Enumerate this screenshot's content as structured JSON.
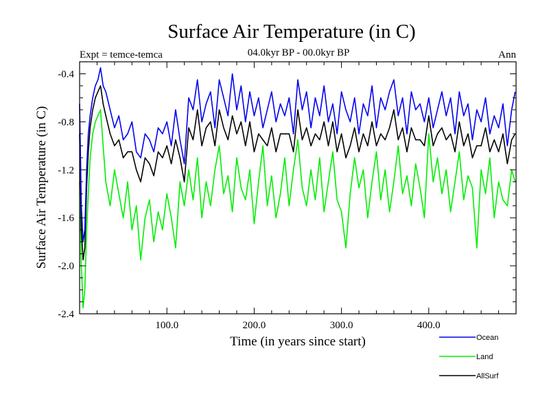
{
  "chart_data": {
    "type": "line",
    "title": "Surface Air Temperature (in C)",
    "subtitle": "04.0kyr BP - 00.0kyr BP",
    "left_note": "Expt = temce-temca",
    "right_note": "Ann",
    "xlabel": "Time (in years since start)",
    "ylabel": "Surface Air Temperature (in C)",
    "xlim": [
      0,
      500
    ],
    "ylim": [
      -2.4,
      -0.3
    ],
    "x_ticks": [
      100,
      200,
      300,
      400
    ],
    "x_tick_labels": [
      "100.0",
      "200.0",
      "300.0",
      "400.0"
    ],
    "y_ticks": [
      -2.4,
      -2.0,
      -1.6,
      -1.2,
      -0.8,
      -0.4
    ],
    "y_tick_labels": [
      "-2.4",
      "-2.0",
      "-1.6",
      "-1.2",
      "-0.8",
      "-0.4"
    ],
    "legend_position": "bottom-right",
    "series": [
      {
        "name": "Ocean",
        "color": "#0000ee",
        "x": [
          0,
          2,
          4,
          6,
          8,
          10,
          12,
          15,
          18,
          21,
          24,
          27,
          30,
          35,
          40,
          45,
          50,
          55,
          60,
          65,
          70,
          75,
          80,
          85,
          90,
          95,
          100,
          105,
          110,
          115,
          120,
          125,
          130,
          135,
          140,
          145,
          150,
          155,
          160,
          165,
          170,
          175,
          180,
          185,
          190,
          195,
          200,
          205,
          210,
          215,
          220,
          225,
          230,
          235,
          240,
          245,
          250,
          255,
          260,
          265,
          270,
          275,
          280,
          285,
          290,
          295,
          300,
          305,
          310,
          315,
          320,
          325,
          330,
          335,
          340,
          345,
          350,
          355,
          360,
          365,
          370,
          375,
          380,
          385,
          390,
          395,
          400,
          405,
          410,
          415,
          420,
          425,
          430,
          435,
          440,
          445,
          450,
          455,
          460,
          465,
          470,
          475,
          480,
          485,
          490,
          495,
          499
        ],
        "values": [
          -0.65,
          -1.5,
          -1.8,
          -1.7,
          -1.2,
          -0.9,
          -0.75,
          -0.6,
          -0.5,
          -0.45,
          -0.35,
          -0.5,
          -0.55,
          -0.7,
          -0.85,
          -0.75,
          -0.95,
          -0.9,
          -0.8,
          -1.05,
          -1.1,
          -0.9,
          -0.95,
          -1.05,
          -0.85,
          -0.9,
          -0.8,
          -1.0,
          -0.7,
          -0.95,
          -1.15,
          -0.6,
          -0.7,
          -0.45,
          -0.8,
          -0.65,
          -0.55,
          -0.85,
          -0.45,
          -0.6,
          -0.75,
          -0.4,
          -0.7,
          -0.5,
          -0.8,
          -0.55,
          -0.75,
          -0.6,
          -0.85,
          -0.7,
          -0.55,
          -0.8,
          -0.65,
          -0.75,
          -0.6,
          -0.9,
          -0.45,
          -0.7,
          -0.55,
          -0.85,
          -0.6,
          -0.75,
          -0.5,
          -0.8,
          -0.65,
          -0.9,
          -0.55,
          -0.7,
          -0.8,
          -0.6,
          -0.9,
          -0.65,
          -0.75,
          -0.5,
          -0.85,
          -0.6,
          -0.7,
          -0.55,
          -0.45,
          -0.75,
          -0.6,
          -0.9,
          -0.55,
          -0.7,
          -0.65,
          -0.8,
          -0.6,
          -0.85,
          -0.7,
          -0.55,
          -0.75,
          -0.6,
          -0.9,
          -0.55,
          -0.75,
          -0.65,
          -0.95,
          -0.7,
          -0.8,
          -0.6,
          -0.9,
          -0.75,
          -0.85,
          -0.65,
          -1.0,
          -0.7,
          -0.55
        ]
      },
      {
        "name": "Land",
        "color": "#00ee00",
        "x": [
          0,
          2,
          4,
          6,
          8,
          10,
          12,
          15,
          18,
          21,
          24,
          27,
          30,
          35,
          40,
          45,
          50,
          55,
          60,
          65,
          70,
          75,
          80,
          85,
          90,
          95,
          100,
          105,
          110,
          115,
          120,
          125,
          130,
          135,
          140,
          145,
          150,
          155,
          160,
          165,
          170,
          175,
          180,
          185,
          190,
          195,
          200,
          205,
          210,
          215,
          220,
          225,
          230,
          235,
          240,
          245,
          250,
          255,
          260,
          265,
          270,
          275,
          280,
          285,
          290,
          295,
          300,
          305,
          310,
          315,
          320,
          325,
          330,
          335,
          340,
          345,
          350,
          355,
          360,
          365,
          370,
          375,
          380,
          385,
          390,
          395,
          400,
          405,
          410,
          415,
          420,
          425,
          430,
          435,
          440,
          445,
          450,
          455,
          460,
          465,
          470,
          475,
          480,
          485,
          490,
          495,
          499
        ],
        "values": [
          -1.3,
          -2.0,
          -2.35,
          -2.2,
          -1.7,
          -1.4,
          -1.1,
          -0.9,
          -0.8,
          -0.75,
          -0.7,
          -1.0,
          -1.3,
          -1.5,
          -1.2,
          -1.4,
          -1.6,
          -1.3,
          -1.7,
          -1.5,
          -1.95,
          -1.6,
          -1.45,
          -1.8,
          -1.55,
          -1.7,
          -1.4,
          -1.6,
          -1.85,
          -1.3,
          -1.5,
          -1.2,
          -1.45,
          -1.1,
          -1.6,
          -1.3,
          -1.5,
          -1.2,
          -1.0,
          -1.4,
          -1.25,
          -1.55,
          -1.1,
          -1.35,
          -1.45,
          -1.2,
          -1.65,
          -1.3,
          -1.0,
          -1.5,
          -1.25,
          -1.6,
          -1.4,
          -1.1,
          -1.5,
          -1.2,
          -0.95,
          -1.35,
          -1.5,
          -1.2,
          -1.45,
          -1.1,
          -1.55,
          -1.3,
          -1.05,
          -1.45,
          -1.55,
          -1.85,
          -1.4,
          -1.1,
          -1.35,
          -1.2,
          -1.6,
          -1.3,
          -1.05,
          -1.45,
          -1.2,
          -1.55,
          -1.3,
          -1.0,
          -1.4,
          -1.25,
          -1.5,
          -1.15,
          -1.35,
          -1.6,
          -0.9,
          -1.3,
          -1.1,
          -1.4,
          -1.2,
          -1.55,
          -1.3,
          -1.05,
          -1.45,
          -1.25,
          -1.35,
          -1.85,
          -1.2,
          -1.4,
          -1.1,
          -1.6,
          -1.3,
          -1.45,
          -1.5,
          -1.2,
          -1.3
        ]
      },
      {
        "name": "AllSurf",
        "color": "#000000",
        "x": [
          0,
          2,
          4,
          6,
          8,
          10,
          12,
          15,
          18,
          21,
          24,
          27,
          30,
          35,
          40,
          45,
          50,
          55,
          60,
          65,
          70,
          75,
          80,
          85,
          90,
          95,
          100,
          105,
          110,
          115,
          120,
          125,
          130,
          135,
          140,
          145,
          150,
          155,
          160,
          165,
          170,
          175,
          180,
          185,
          190,
          195,
          200,
          205,
          210,
          215,
          220,
          225,
          230,
          235,
          240,
          245,
          250,
          255,
          260,
          265,
          270,
          275,
          280,
          285,
          290,
          295,
          300,
          305,
          310,
          315,
          320,
          325,
          330,
          335,
          340,
          345,
          350,
          355,
          360,
          365,
          370,
          375,
          380,
          385,
          390,
          395,
          400,
          405,
          410,
          415,
          420,
          425,
          430,
          435,
          440,
          445,
          450,
          455,
          460,
          465,
          470,
          475,
          480,
          485,
          490,
          495,
          499
        ],
        "values": [
          -0.9,
          -1.7,
          -1.95,
          -1.85,
          -1.35,
          -1.05,
          -0.85,
          -0.7,
          -0.6,
          -0.55,
          -0.5,
          -0.65,
          -0.75,
          -0.9,
          -1.0,
          -0.95,
          -1.1,
          -1.05,
          -1.05,
          -1.2,
          -1.3,
          -1.1,
          -1.15,
          -1.25,
          -1.05,
          -1.1,
          -1.0,
          -1.15,
          -0.95,
          -1.1,
          -1.3,
          -0.85,
          -0.95,
          -0.7,
          -1.0,
          -0.85,
          -0.8,
          -1.0,
          -0.7,
          -0.85,
          -0.95,
          -0.75,
          -0.9,
          -0.8,
          -1.0,
          -0.8,
          -1.05,
          -0.9,
          -0.95,
          -1.0,
          -0.85,
          -1.05,
          -0.9,
          -0.9,
          -0.9,
          -1.05,
          -0.7,
          -0.95,
          -0.85,
          -1.0,
          -0.9,
          -0.95,
          -0.8,
          -1.0,
          -0.8,
          -1.05,
          -0.9,
          -1.1,
          -1.0,
          -0.85,
          -1.05,
          -0.9,
          -1.0,
          -0.8,
          -1.0,
          -0.9,
          -0.95,
          -0.85,
          -0.7,
          -0.95,
          -0.85,
          -1.05,
          -0.85,
          -0.95,
          -0.95,
          -1.0,
          -0.75,
          -1.0,
          -0.9,
          -0.85,
          -0.95,
          -0.9,
          -1.05,
          -0.8,
          -1.0,
          -0.9,
          -1.1,
          -1.0,
          -1.0,
          -0.85,
          -1.05,
          -0.95,
          -1.05,
          -0.9,
          -1.15,
          -0.95,
          -0.9
        ]
      }
    ]
  }
}
